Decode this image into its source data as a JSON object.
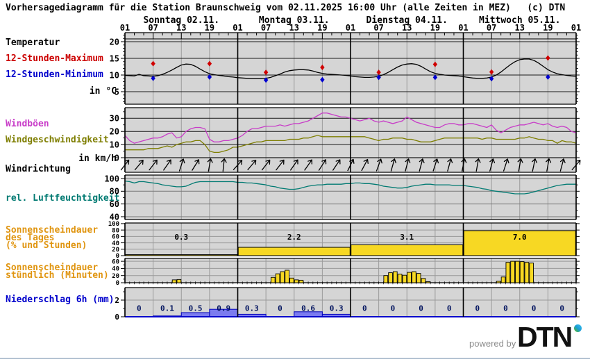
{
  "title": "Vorhersagediagramm für die Station Braunschweig vom 02.11.2025 16:00 Uhr (alle Zeiten in MEZ)   (c) DTN",
  "axis": {
    "days": [
      "Sonntag 02.11.",
      "Montag 03.11.",
      "Dienstag 04.11.",
      "Mittwoch 05.11."
    ],
    "hour_labels": [
      "01",
      "07",
      "13",
      "19",
      "01",
      "07",
      "13",
      "19",
      "01",
      "07",
      "13",
      "19",
      "01",
      "07",
      "13",
      "19",
      "01"
    ]
  },
  "labels": {
    "temperatur": "Temperatur",
    "max12": "12-Stunden-Maximum",
    "min12": "12-Stunden-Minimum",
    "temp_unit": "in °C",
    "windboeen": "Windböen",
    "windgeschw": "Windgeschwindigkeit",
    "wind_unit": "in km/h",
    "windrichtung": "Windrichtung",
    "humidity": "rel. Luftfeuchtigkeit",
    "sunday1": "Sonnenscheindauer",
    "sunday2": "des Tages",
    "sunday3": "(% und Stunden)",
    "sunhour1": "Sonnenscheindauer",
    "sunhour2": "stündlich (Minuten)",
    "precip": "Niederschlag 6h (mm)"
  },
  "footer": {
    "powered_by": "powered by",
    "logo": "DTN"
  },
  "colors": {
    "panel_bg": "#d5d5d5",
    "grid_minor": "#9a9a9a",
    "grid_major": "#1a1a1a",
    "temperature": "#000000",
    "max_marker": "#d00000",
    "min_marker": "#0000d0",
    "gusts": "#c83cc8",
    "wind_speed": "#7e7e00",
    "humidity": "#007a72",
    "sun_bar": "#f7d823",
    "sun_label": "#e09510",
    "precip_bar_fill": "#7b7bef",
    "precip_bar_edge": "#0000bb",
    "precip_base": "#0000cc"
  },
  "chart_data": [
    {
      "id": "temperature",
      "type": "line",
      "ylabel": "in °C",
      "yticks": [
        20,
        15,
        10,
        5
      ],
      "ylim": [
        1.25,
        22.7
      ],
      "series": [
        {
          "name": "Temperatur",
          "color": "#000000",
          "values": [
            9.9,
            9.8,
            9.7,
            10.2,
            9.8,
            9.7,
            9.6,
            9.8,
            10.2,
            10.8,
            11.5,
            12.3,
            13.0,
            13.3,
            13.2,
            12.6,
            11.8,
            11.0,
            10.4,
            10.1,
            9.9,
            9.7,
            9.5,
            9.4,
            9.2,
            9.1,
            9.0,
            8.9,
            8.9,
            8.9,
            9.0,
            9.3,
            9.8,
            10.3,
            10.9,
            11.3,
            11.5,
            11.6,
            11.6,
            11.5,
            11.2,
            10.8,
            10.5,
            10.3,
            10.2,
            10.1,
            10.0,
            9.9,
            9.7,
            9.5,
            9.4,
            9.3,
            9.3,
            9.4,
            9.6,
            10.1,
            10.8,
            11.6,
            12.4,
            13.0,
            13.3,
            13.4,
            13.2,
            12.6,
            11.8,
            11.0,
            10.5,
            10.2,
            10.0,
            9.9,
            9.8,
            9.7,
            9.5,
            9.3,
            9.1,
            9.0,
            9.0,
            9.1,
            9.4,
            10.0,
            10.9,
            12.0,
            13.1,
            14.0,
            14.6,
            14.8,
            14.8,
            14.4,
            13.6,
            12.6,
            11.6,
            10.9,
            10.4,
            10.1,
            9.9,
            9.7,
            9.6
          ]
        }
      ],
      "markers": [
        {
          "name": "12-Stunden-Maximum",
          "color": "#d00000",
          "hours": [
            6,
            18,
            30,
            42,
            54,
            66,
            78,
            90
          ],
          "values": [
            13.4,
            13.4,
            10.8,
            12.3,
            10.8,
            13.2,
            10.9,
            15.1
          ]
        },
        {
          "name": "12-Stunden-Minimum",
          "color": "#0000d0",
          "hours": [
            6,
            18,
            30,
            42,
            54,
            66,
            78,
            90
          ],
          "values": [
            9.0,
            9.4,
            8.5,
            8.6,
            9.3,
            9.3,
            8.9,
            9.4
          ]
        }
      ]
    },
    {
      "id": "wind",
      "type": "line",
      "ylabel": "in km/h",
      "yticks": [
        30,
        20,
        10,
        0
      ],
      "ylim": [
        0,
        38.1
      ],
      "series": [
        {
          "name": "Windböen",
          "color": "#c83cc8",
          "values": [
            17,
            13,
            11,
            12,
            13,
            14,
            15,
            15,
            16,
            18,
            19,
            15,
            16,
            20,
            22,
            23,
            23,
            22,
            14,
            12,
            12,
            13,
            13,
            14,
            15,
            17,
            20,
            22,
            22,
            23,
            24,
            24,
            24,
            25,
            24,
            25,
            26,
            26,
            27,
            28,
            30,
            32,
            34,
            34,
            33,
            32,
            31,
            31,
            30,
            29,
            28,
            29,
            30,
            28,
            27,
            28,
            27,
            26,
            27,
            28,
            31,
            29,
            27,
            26,
            25,
            24,
            23,
            23,
            25,
            26,
            26,
            25,
            25,
            26,
            26,
            25,
            24,
            23,
            25,
            21,
            19,
            21,
            23,
            24,
            25,
            25,
            26,
            27,
            26,
            25,
            26,
            24,
            23,
            24,
            23,
            20,
            19
          ]
        },
        {
          "name": "Windgeschwindigkeit",
          "color": "#7e7e00",
          "values": [
            6,
            6,
            6,
            6,
            6,
            7,
            7,
            7,
            8,
            9,
            8,
            10,
            11,
            12,
            12,
            13,
            13,
            10,
            5,
            4,
            4,
            5,
            6,
            8,
            8,
            9,
            10,
            11,
            12,
            12,
            13,
            13,
            13,
            13,
            13,
            14,
            14,
            14,
            15,
            15,
            16,
            17,
            16,
            16,
            16,
            16,
            16,
            16,
            16,
            16,
            16,
            16,
            15,
            14,
            13,
            14,
            14,
            15,
            15,
            15,
            14,
            14,
            13,
            12,
            12,
            12,
            13,
            14,
            15,
            15,
            15,
            15,
            15,
            15,
            15,
            15,
            14,
            15,
            15,
            14,
            14,
            14,
            14,
            14,
            15,
            15,
            16,
            15,
            14,
            14,
            13,
            13,
            11,
            13,
            12,
            12,
            11
          ]
        }
      ]
    },
    {
      "id": "wind_direction",
      "type": "arrows",
      "name": "Windrichtung",
      "step_hours": 3,
      "angles_deg": [
        38,
        40,
        38,
        35,
        18,
        32,
        10,
        6,
        42,
        40,
        38,
        38,
        35,
        35,
        33,
        34,
        26,
        28,
        20,
        16,
        15,
        15,
        18,
        15,
        12,
        10,
        15,
        18,
        10,
        12,
        10,
        15,
        40
      ]
    },
    {
      "id": "humidity",
      "type": "line",
      "name": "rel. Luftfeuchtigkeit",
      "yticks": [
        100,
        80,
        60,
        40
      ],
      "ylim": [
        35.6,
        105.4
      ],
      "series": [
        {
          "name": "rel. Luftfeuchtigkeit",
          "color": "#007a72",
          "values": [
            96,
            95,
            93,
            95,
            95,
            94,
            93,
            92,
            90,
            89,
            88,
            87,
            87,
            88,
            91,
            94,
            95,
            95,
            95,
            95,
            95,
            95,
            95,
            95,
            94,
            94,
            93,
            93,
            92,
            91,
            90,
            88,
            87,
            85,
            84,
            83,
            83,
            84,
            86,
            88,
            89,
            90,
            90,
            91,
            91,
            91,
            91,
            92,
            92,
            93,
            93,
            92,
            92,
            91,
            90,
            88,
            87,
            86,
            85,
            85,
            86,
            88,
            89,
            90,
            91,
            91,
            90,
            90,
            90,
            90,
            89,
            89,
            89,
            88,
            87,
            86,
            84,
            83,
            81,
            80,
            79,
            78,
            77,
            76,
            76,
            76,
            77,
            79,
            81,
            83,
            85,
            87,
            89,
            90,
            91,
            91,
            91
          ]
        }
      ]
    },
    {
      "id": "sunshine_day",
      "type": "bar",
      "name": "Sonnenscheindauer des Tages (% und Stunden)",
      "yticks": [
        100,
        80,
        60,
        40,
        20,
        0
      ],
      "ylim": [
        0,
        102
      ],
      "bars": [
        {
          "day": "Sonntag 02.11.",
          "label": "0.3",
          "percent": 3
        },
        {
          "day": "Montag 03.11.",
          "label": "2.2",
          "percent": 26
        },
        {
          "day": "Dienstag 04.11.",
          "label": "3.1",
          "percent": 34
        },
        {
          "day": "Mittwoch 05.11.",
          "label": "7.0",
          "percent": 78
        }
      ]
    },
    {
      "id": "sunshine_hourly",
      "type": "bar",
      "name": "Sonnenscheindauer stündlich (Minuten)",
      "yticks": [
        60,
        40,
        20,
        0
      ],
      "ylim": [
        0,
        68
      ],
      "bars": [
        {
          "hour": 10,
          "minutes": 8
        },
        {
          "hour": 11,
          "minutes": 9
        },
        {
          "hour": 31,
          "minutes": 15
        },
        {
          "hour": 32,
          "minutes": 25
        },
        {
          "hour": 33,
          "minutes": 31
        },
        {
          "hour": 34,
          "minutes": 35
        },
        {
          "hour": 35,
          "minutes": 13
        },
        {
          "hour": 36,
          "minutes": 8
        },
        {
          "hour": 37,
          "minutes": 7
        },
        {
          "hour": 55,
          "minutes": 20
        },
        {
          "hour": 56,
          "minutes": 28
        },
        {
          "hour": 57,
          "minutes": 31
        },
        {
          "hour": 58,
          "minutes": 24
        },
        {
          "hour": 59,
          "minutes": 21
        },
        {
          "hour": 60,
          "minutes": 29
        },
        {
          "hour": 61,
          "minutes": 31
        },
        {
          "hour": 62,
          "minutes": 26
        },
        {
          "hour": 63,
          "minutes": 12
        },
        {
          "hour": 64,
          "minutes": 3
        },
        {
          "hour": 79,
          "minutes": 4
        },
        {
          "hour": 80,
          "minutes": 16
        },
        {
          "hour": 81,
          "minutes": 57
        },
        {
          "hour": 82,
          "minutes": 60
        },
        {
          "hour": 83,
          "minutes": 60
        },
        {
          "hour": 84,
          "minutes": 59
        },
        {
          "hour": 85,
          "minutes": 57
        },
        {
          "hour": 86,
          "minutes": 55
        }
      ]
    },
    {
      "id": "precipitation",
      "type": "bar",
      "name": "Niederschlag 6h (mm)",
      "yticks": [
        2,
        0
      ],
      "ylim": [
        0,
        3.5
      ],
      "bars": [
        {
          "label": "0",
          "value": 0
        },
        {
          "label": "0.1",
          "value": 0.1
        },
        {
          "label": "0.5",
          "value": 0.5
        },
        {
          "label": "0.9",
          "value": 0.9
        },
        {
          "label": "0.3",
          "value": 0.3
        },
        {
          "label": "0",
          "value": 0
        },
        {
          "label": "0.6",
          "value": 0.6
        },
        {
          "label": "0.3",
          "value": 0.3
        },
        {
          "label": "0",
          "value": 0
        },
        {
          "label": "0",
          "value": 0
        },
        {
          "label": "0",
          "value": 0
        },
        {
          "label": "0",
          "value": 0
        },
        {
          "label": "0",
          "value": 0
        },
        {
          "label": "0",
          "value": 0
        },
        {
          "label": "0",
          "value": 0
        },
        {
          "label": "0",
          "value": 0
        }
      ]
    }
  ]
}
